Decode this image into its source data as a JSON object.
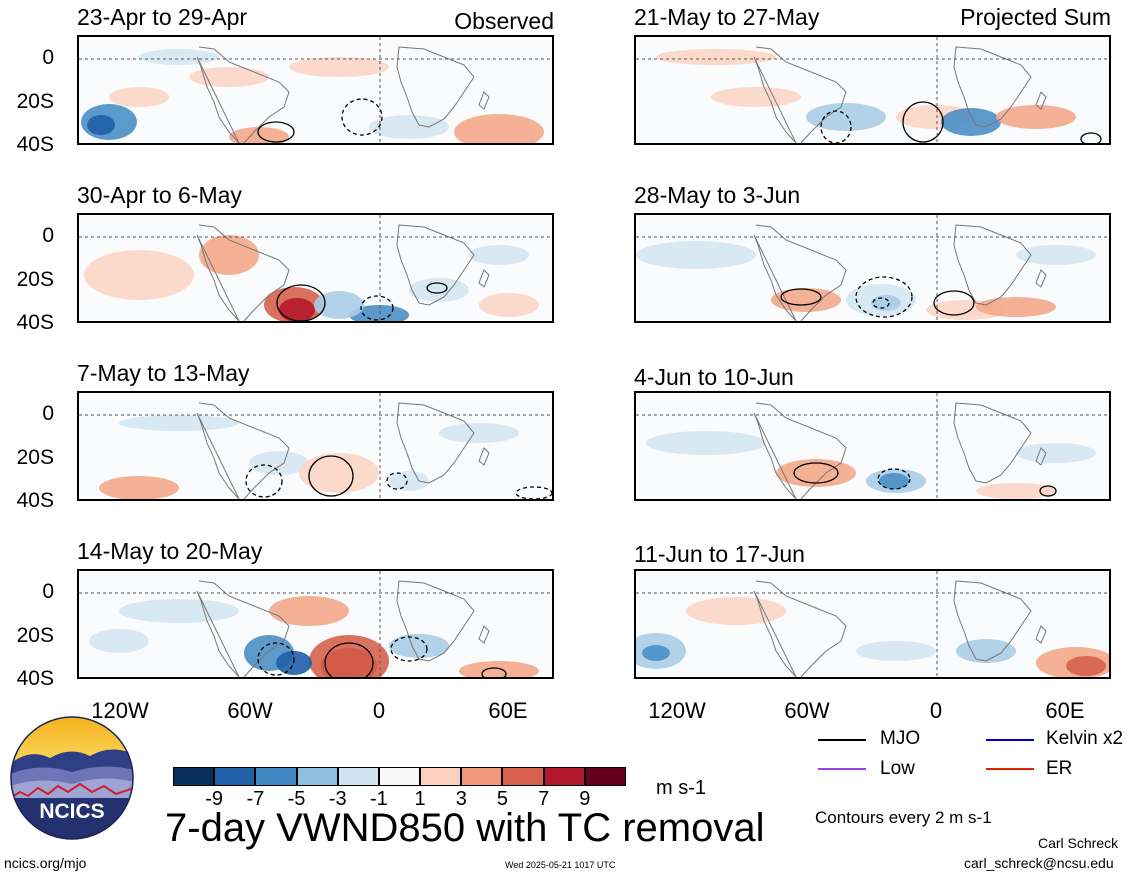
{
  "header": {
    "left_label": "Observed",
    "right_label": "Projected Sum"
  },
  "panels_left": [
    {
      "title": "23-Apr to 29-Apr"
    },
    {
      "title": "30-Apr to 6-May"
    },
    {
      "title": "7-May to 13-May"
    },
    {
      "title": "14-May to 20-May"
    }
  ],
  "panels_right": [
    {
      "title": "21-May to 27-May"
    },
    {
      "title": "28-May to 3-Jun"
    },
    {
      "title": "4-Jun to 10-Jun"
    },
    {
      "title": "11-Jun to 17-Jun"
    }
  ],
  "axes": {
    "y_ticks": [
      "0",
      "20S",
      "40S"
    ],
    "x_ticks": [
      "120W",
      "60W",
      "0",
      "60E"
    ]
  },
  "colorbar": {
    "labels": [
      "-9",
      "-7",
      "-5",
      "-3",
      "-1",
      "1",
      "3",
      "5",
      "7",
      "9"
    ],
    "colors": [
      "#0b2f5c",
      "#1f5fa8",
      "#3f86c4",
      "#8fc0df",
      "#cfe4f0",
      "#f7f7f7",
      "#fbd0bd",
      "#f1977a",
      "#d6604d",
      "#b2182b",
      "#67001f"
    ],
    "units": "m s-1"
  },
  "legend": {
    "items": [
      {
        "label": "MJO",
        "color": "#000000"
      },
      {
        "label": "Kelvin x2",
        "color": "#0000cc"
      },
      {
        "label": "Low",
        "color": "#a040e0"
      },
      {
        "label": "ER",
        "color": "#dd2200"
      }
    ],
    "contour_note": "Contours every 2 m s-1"
  },
  "main_title": "7-day VWND850 with TC removal",
  "logo": {
    "text": "NCICS"
  },
  "footer": {
    "url": "ncics.org/mjo",
    "timestamp": "Wed 2025-05-21 1017 UTC",
    "author": "Carl Schreck",
    "email": "carl_schreck@ncsu.edu"
  },
  "chart_data": {
    "type": "heatmap",
    "variable": "7-day VWND850 with TC removal",
    "units": "m s-1",
    "lon_ticks": [
      "120W",
      "60W",
      "0",
      "60E"
    ],
    "lat_ticks": [
      "0",
      "20S",
      "40S"
    ],
    "color_levels": [
      -9,
      -7,
      -5,
      -3,
      -1,
      1,
      3,
      5,
      7,
      9
    ],
    "contour_interval": 2,
    "panels": [
      "23-Apr to 29-Apr",
      "30-Apr to 6-May",
      "7-May to 13-May",
      "14-May to 20-May",
      "21-May to 27-May",
      "28-May to 3-Jun",
      "4-Jun to 10-Jun",
      "11-Jun to 17-Jun"
    ]
  }
}
